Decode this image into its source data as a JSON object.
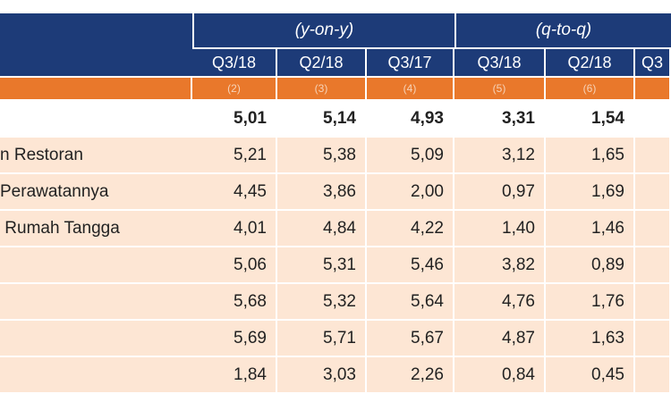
{
  "header": {
    "groups": [
      "(y-on-y)",
      "(q-to-q)"
    ],
    "columns": [
      "Q3/18",
      "Q2/18",
      "Q3/17",
      "Q3/18",
      "Q2/18",
      "Q3"
    ],
    "column_numbers": [
      "(2)",
      "(3)",
      "(4)",
      "(5)",
      "(6)"
    ]
  },
  "table": {
    "rows": [
      {
        "values": [
          "5,01",
          "5,14",
          "4,93",
          "3,31",
          "1,54"
        ]
      },
      {
        "label": "n Restoran",
        "values": [
          "5,21",
          "5,38",
          "5,09",
          "3,12",
          "1,65"
        ]
      },
      {
        "label": "Perawatannya",
        "values": [
          "4,45",
          "3,86",
          "2,00",
          "0,97",
          "1,69"
        ]
      },
      {
        "label": " Rumah Tangga",
        "values": [
          "4,01",
          "4,84",
          "4,22",
          "1,40",
          "1,46"
        ]
      },
      {
        "values": [
          "5,06",
          "5,31",
          "5,46",
          "3,82",
          "0,89"
        ]
      },
      {
        "values": [
          "5,68",
          "5,32",
          "5,64",
          "4,76",
          "1,76"
        ]
      },
      {
        "values": [
          "5,69",
          "5,71",
          "5,67",
          "4,87",
          "1,63"
        ]
      },
      {
        "values": [
          "1,84",
          "3,03",
          "2,26",
          "0,84",
          "0,45"
        ]
      }
    ]
  }
}
